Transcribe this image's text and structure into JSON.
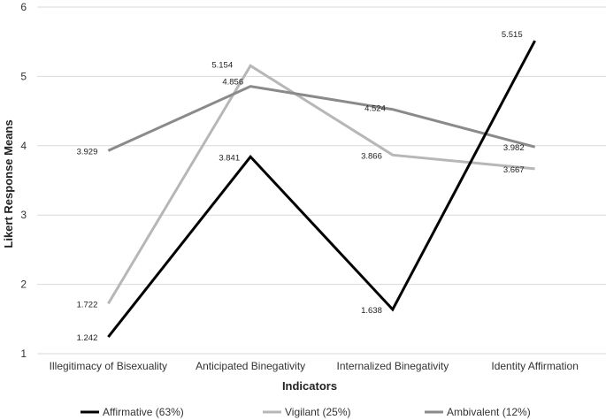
{
  "chart_data": {
    "type": "line",
    "title": "",
    "xlabel": "Indicators",
    "ylabel": "Likert Response Means",
    "categories": [
      "Illegitimacy of Bisexuality",
      "Anticipated Binegativity",
      "Internalized Binegativity",
      "Identity Affirmation"
    ],
    "ylim": [
      1,
      6
    ],
    "yticks": [
      "1",
      "2",
      "3",
      "4",
      "5",
      "6"
    ],
    "grid": true,
    "legend_position": "bottom",
    "series": [
      {
        "name": "Affirmative (63%)",
        "color": "#000000",
        "values": [
          1.242,
          3.841,
          1.638,
          5.515
        ],
        "labels": [
          "1.242",
          "3.841",
          "1.638",
          "5.515"
        ]
      },
      {
        "name": "Vigilant (25%)",
        "color": "#b7b7b7",
        "values": [
          1.722,
          5.154,
          3.866,
          3.667
        ],
        "labels": [
          "1.722",
          "5.154",
          "3.866",
          "3.667"
        ]
      },
      {
        "name": "Ambivalent (12%)",
        "color": "#8a8a8a",
        "values": [
          3.929,
          4.856,
          4.524,
          3.982
        ],
        "labels": [
          "3.929",
          "4.856",
          "4.524",
          "3.982"
        ]
      }
    ]
  }
}
